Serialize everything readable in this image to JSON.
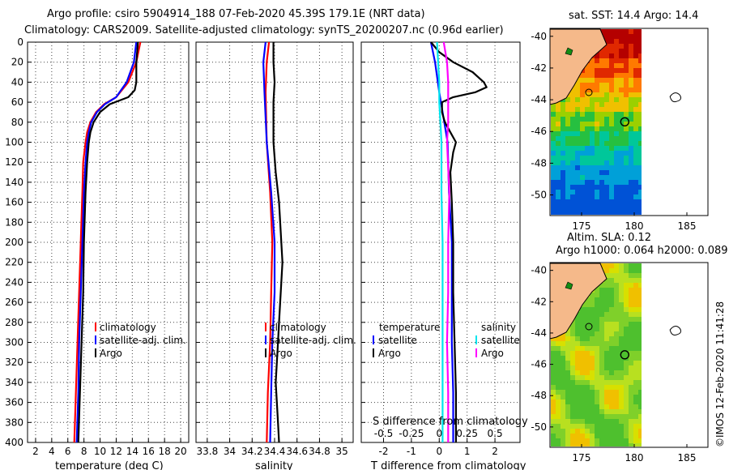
{
  "header": {
    "line1": "Argo profile: csiro 5904914_188 07-Feb-2020 45.39S 179.1E (NRT data)",
    "line2": "Climatology: CARS2009. Satellite-adjusted climatology: synTS_20200207.nc (0.96d earlier)"
  },
  "footer": {
    "credit": "©IMOS 12-Feb-2020 11:41:28"
  },
  "colors": {
    "climatology": "#ff0000",
    "satellite": "#0000ff",
    "argo": "#000000",
    "salinity_clim": "#ff00ff",
    "salinity_sat": "#00e5ee",
    "land": "#f5b98a"
  },
  "chart_data": [
    {
      "id": "temperature",
      "type": "line",
      "xlabel": "temperature (deg C)",
      "xlim": [
        1,
        21
      ],
      "xticks": [
        2,
        4,
        6,
        8,
        10,
        12,
        14,
        16,
        18,
        20
      ],
      "ylim": [
        0,
        400
      ],
      "yticks": [
        0,
        20,
        40,
        60,
        80,
        100,
        120,
        140,
        160,
        180,
        200,
        220,
        240,
        260,
        280,
        300,
        320,
        340,
        360,
        380,
        400
      ],
      "legend": [
        "climatology",
        "satellite-adj. clim.",
        "Argo"
      ],
      "series": [
        {
          "name": "climatology",
          "color": "#ff0000",
          "depth": [
            0,
            20,
            40,
            55,
            62,
            70,
            80,
            90,
            100,
            120,
            150,
            200,
            250,
            300,
            350,
            400
          ],
          "values": [
            15.0,
            14.5,
            13.5,
            12.0,
            10.5,
            9.5,
            8.8,
            8.4,
            8.2,
            7.9,
            7.8,
            7.6,
            7.4,
            7.2,
            7.0,
            6.8
          ]
        },
        {
          "name": "satellite-adj. clim.",
          "color": "#0000ff",
          "depth": [
            0,
            20,
            40,
            55,
            62,
            70,
            80,
            90,
            100,
            120,
            150,
            200,
            250,
            300,
            350,
            400
          ],
          "values": [
            14.5,
            14.2,
            13.3,
            12.0,
            10.6,
            9.6,
            8.9,
            8.6,
            8.4,
            8.2,
            8.0,
            7.8,
            7.6,
            7.4,
            7.3,
            7.1
          ]
        },
        {
          "name": "Argo",
          "color": "#000000",
          "depth": [
            0,
            10,
            20,
            30,
            40,
            48,
            55,
            62,
            70,
            80,
            90,
            100,
            120,
            150,
            200,
            250,
            300,
            350,
            400
          ],
          "values": [
            14.7,
            14.6,
            14.5,
            14.5,
            14.5,
            14.3,
            13.5,
            11.2,
            10.0,
            9.2,
            8.8,
            8.6,
            8.4,
            8.2,
            8.0,
            7.9,
            7.7,
            7.5,
            7.3
          ]
        }
      ]
    },
    {
      "id": "salinity",
      "type": "line",
      "xlabel": "salinity",
      "xlim": [
        33.7,
        35.1
      ],
      "xticks": [
        33.8,
        34,
        34.2,
        34.4,
        34.6,
        34.8,
        35
      ],
      "xtick_labels": [
        "33.8",
        "34",
        "34.2",
        "34.4",
        "34.6",
        "34.8",
        "35"
      ],
      "ylim": [
        0,
        400
      ],
      "legend": [
        "climatology",
        "satellite-adj. clim.",
        "Argo"
      ],
      "series": [
        {
          "name": "climatology",
          "color": "#ff0000",
          "depth": [
            0,
            20,
            50,
            100,
            150,
            200,
            250,
            300,
            350,
            400
          ],
          "values": [
            34.35,
            34.33,
            34.32,
            34.33,
            34.36,
            34.38,
            34.37,
            34.36,
            34.34,
            34.33
          ]
        },
        {
          "name": "satellite-adj. clim.",
          "color": "#0000ff",
          "depth": [
            0,
            20,
            50,
            100,
            150,
            200,
            250,
            300,
            350,
            400
          ],
          "values": [
            34.32,
            34.3,
            34.31,
            34.33,
            34.37,
            34.4,
            34.4,
            34.38,
            34.37,
            34.36
          ]
        },
        {
          "name": "Argo",
          "color": "#000000",
          "depth": [
            0,
            20,
            40,
            60,
            80,
            100,
            130,
            160,
            180,
            200,
            220,
            240,
            260,
            280,
            300,
            320,
            340,
            360,
            380,
            400
          ],
          "values": [
            34.39,
            34.39,
            34.4,
            34.39,
            34.39,
            34.39,
            34.41,
            34.44,
            34.45,
            34.46,
            34.47,
            34.46,
            34.45,
            34.44,
            34.43,
            34.42,
            34.41,
            34.42,
            34.43,
            34.44
          ]
        }
      ]
    },
    {
      "id": "difference",
      "type": "line",
      "xlabel": "T difference from climatology",
      "xlim": [
        -2.8,
        2.9
      ],
      "xticks": [
        -2,
        -1,
        0,
        1,
        2
      ],
      "xtick_labels": [
        "-2",
        "-1",
        "0",
        "1",
        "2"
      ],
      "top_xlabel": "S difference from climatology",
      "s_xlim": [
        -0.7,
        0.725
      ],
      "s_xticks": [
        -0.5,
        -0.25,
        0,
        0.25,
        0.5
      ],
      "s_xtick_labels": [
        "-0.5",
        "-0.25",
        "0",
        "0.25",
        "0.5"
      ],
      "ylim": [
        0,
        400
      ],
      "legend_temperature_title": "temperature",
      "legend_salinity_title": "salinity",
      "legend_temperature": [
        "satellite",
        "Argo"
      ],
      "legend_salinity": [
        "satellite",
        "Argo"
      ],
      "series": [
        {
          "name": "temperature satellite",
          "axis": "T",
          "color": "#0000ff",
          "depth": [
            0,
            20,
            50,
            100,
            150,
            200,
            250,
            300,
            350,
            400
          ],
          "values": [
            -0.3,
            -0.15,
            0.0,
            0.3,
            0.35,
            0.45,
            0.45,
            0.45,
            0.5,
            0.5
          ]
        },
        {
          "name": "temperature Argo",
          "axis": "T",
          "color": "#000000",
          "depth": [
            0,
            10,
            20,
            30,
            40,
            45,
            50,
            55,
            60,
            70,
            80,
            90,
            100,
            110,
            130,
            160,
            200,
            250,
            300,
            350,
            400
          ],
          "values": [
            -0.3,
            0.0,
            0.5,
            1.2,
            1.6,
            1.7,
            1.3,
            0.5,
            0.1,
            0.1,
            0.2,
            0.4,
            0.6,
            0.5,
            0.4,
            0.45,
            0.5,
            0.5,
            0.55,
            0.6,
            0.6
          ]
        },
        {
          "name": "salinity satellite",
          "axis": "S",
          "color": "#00e5ee",
          "depth": [
            0,
            20,
            40,
            60,
            80,
            100,
            150,
            200,
            250,
            300,
            350,
            400
          ],
          "values": [
            -0.02,
            -0.01,
            0.0,
            0.0,
            0.01,
            0.02,
            0.02,
            0.03,
            0.03,
            0.03,
            0.03,
            0.03
          ]
        },
        {
          "name": "salinity Argo",
          "axis": "S",
          "color": "#ff00ff",
          "depth": [
            0,
            20,
            40,
            60,
            80,
            100,
            150,
            200,
            250,
            300,
            350,
            400
          ],
          "values": [
            0.04,
            0.07,
            0.08,
            0.08,
            0.08,
            0.07,
            0.09,
            0.08,
            0.08,
            0.07,
            0.08,
            0.08
          ]
        }
      ]
    },
    {
      "id": "sst_map",
      "type": "heatmap",
      "title": "sat. SST: 14.4 Argo: 14.4",
      "xlim": [
        172,
        187
      ],
      "ylim": [
        -51.3,
        -39.5
      ],
      "xticks": [
        175,
        180,
        185
      ],
      "yticks": [
        -40,
        -42,
        -44,
        -46,
        -48,
        -50
      ],
      "argo_position": [
        179.1,
        -45.39
      ]
    },
    {
      "id": "sla_map",
      "type": "heatmap",
      "title1": "Altim. SLA: 0.12",
      "title2": "Argo h1000: 0.064 h2000: 0.089",
      "xlim": [
        172,
        187
      ],
      "ylim": [
        -51.3,
        -39.5
      ],
      "xticks": [
        175,
        180,
        185
      ],
      "yticks": [
        -40,
        -42,
        -44,
        -46,
        -48,
        -50
      ],
      "argo_position": [
        179.1,
        -45.39
      ]
    }
  ]
}
